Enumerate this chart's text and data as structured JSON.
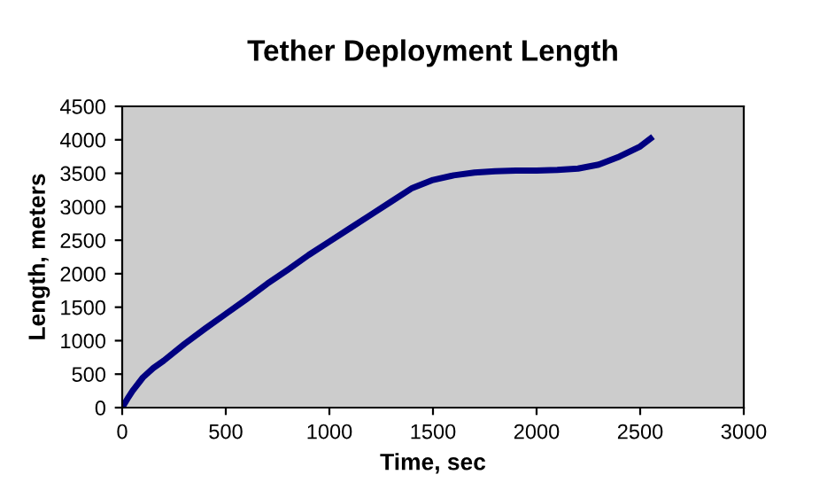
{
  "chart_data": {
    "type": "line",
    "title": "Tether Deployment Length",
    "xlabel": "Time, sec",
    "ylabel": "Length, meters",
    "series": [
      {
        "color": "#000080",
        "x": [
          0,
          25,
          50,
          100,
          150,
          200,
          300,
          400,
          500,
          600,
          700,
          800,
          900,
          1000,
          1100,
          1200,
          1300,
          1400,
          1500,
          1600,
          1700,
          1800,
          1900,
          2000,
          2100,
          2200,
          2300,
          2400,
          2500,
          2550
        ],
        "values": [
          0,
          130,
          250,
          450,
          590,
          700,
          950,
          1180,
          1400,
          1620,
          1850,
          2060,
          2280,
          2480,
          2680,
          2880,
          3080,
          3280,
          3400,
          3470,
          3510,
          3530,
          3540,
          3540,
          3550,
          3570,
          3630,
          3750,
          3900,
          4020
        ]
      }
    ],
    "xlim": [
      0,
      3000
    ],
    "xticks": [
      0,
      500,
      1000,
      1500,
      2000,
      2500,
      3000
    ],
    "ylim": [
      0,
      4500
    ],
    "yticks": [
      0,
      500,
      1000,
      1500,
      2000,
      2500,
      3000,
      3500,
      4000,
      4500
    ],
    "grid": false,
    "legend": false,
    "marker": "none",
    "line_style": "solid"
  }
}
